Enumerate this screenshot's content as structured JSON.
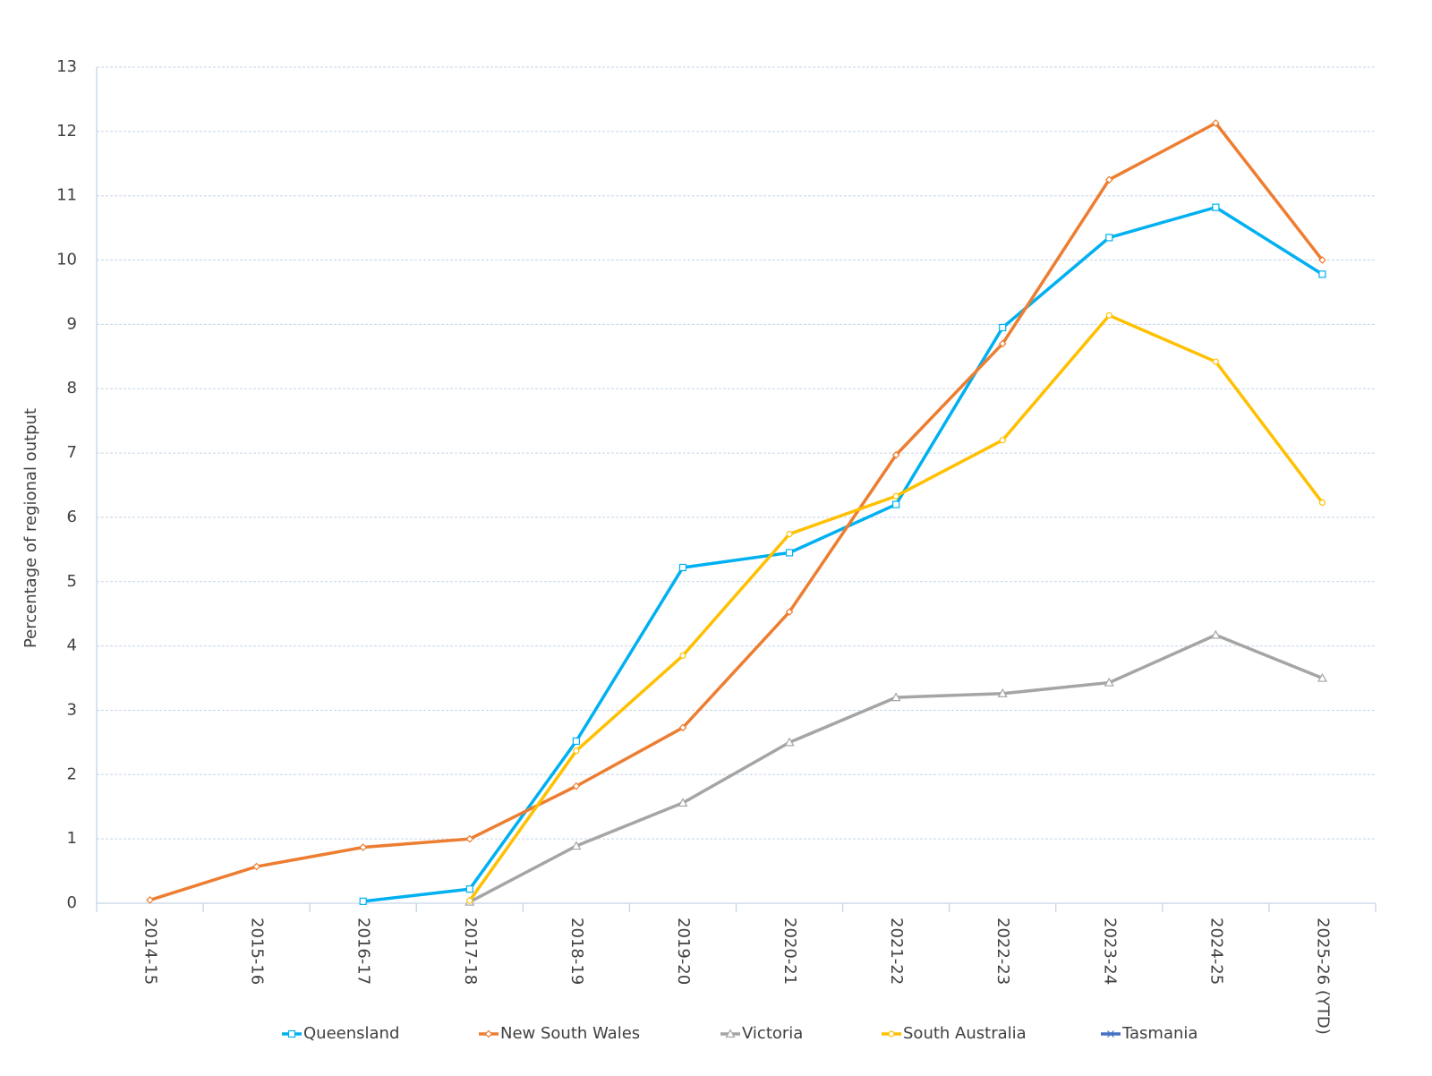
{
  "chart_data": {
    "type": "line",
    "y_label": "Percentage of regional output",
    "categories": [
      "2014-15",
      "2015-16",
      "2016-17",
      "2017-18",
      "2018-19",
      "2019-20",
      "2020-21",
      "2021-22",
      "2022-23",
      "2023-24",
      "2024-25",
      "2025-26 (YTD)"
    ],
    "series": [
      {
        "name": "Queensland",
        "color": "#00b0f0",
        "marker": "square",
        "values": [
          null,
          null,
          0.03,
          0.22,
          2.52,
          5.22,
          5.45,
          6.2,
          8.95,
          10.35,
          10.82,
          9.78
        ]
      },
      {
        "name": "New South Wales",
        "color": "#ed7d31",
        "marker": "diamond",
        "values": [
          0.05,
          0.57,
          0.87,
          1.0,
          1.82,
          2.73,
          4.53,
          6.97,
          8.7,
          11.25,
          12.13,
          10.0
        ]
      },
      {
        "name": "Victoria",
        "color": "#a5a5a5",
        "marker": "triangle",
        "values": [
          null,
          null,
          null,
          0.02,
          0.89,
          1.56,
          2.5,
          3.2,
          3.26,
          3.43,
          4.17,
          3.5
        ]
      },
      {
        "name": "South Australia",
        "color": "#ffc000",
        "marker": "circle",
        "values": [
          null,
          null,
          null,
          0.04,
          2.37,
          3.85,
          5.74,
          6.33,
          7.2,
          9.14,
          8.42,
          6.23
        ]
      },
      {
        "name": "Tasmania",
        "color": "#4472c4",
        "marker": "cross",
        "values": [
          null,
          null,
          null,
          null,
          null,
          null,
          null,
          null,
          null,
          null,
          null,
          null
        ]
      }
    ],
    "ylim": [
      0,
      13
    ],
    "yticks": [
      0,
      1,
      2,
      3,
      4,
      5,
      6,
      7,
      8,
      9,
      10,
      11,
      12,
      13
    ],
    "grid": true
  }
}
